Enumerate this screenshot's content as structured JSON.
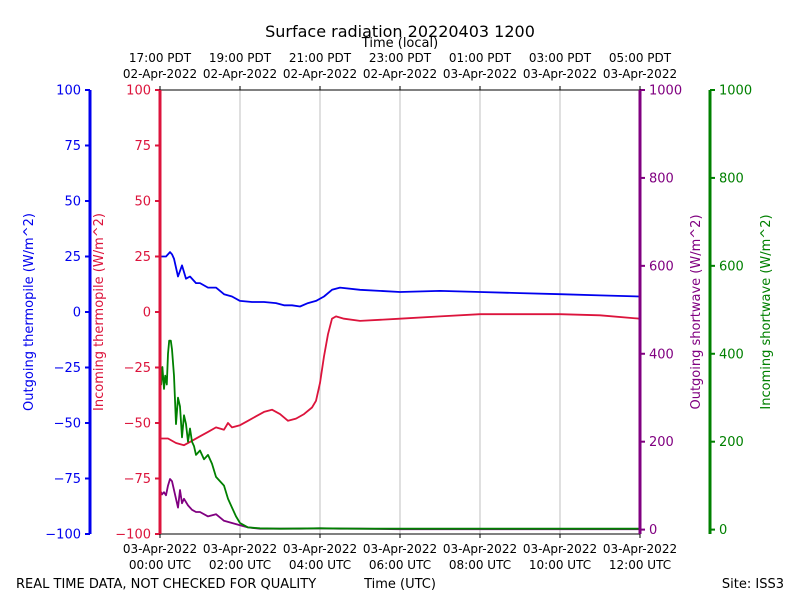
{
  "chart_data": {
    "type": "line",
    "title": "Surface radiation 20220403 1200",
    "top_axis_label": "Time (local)",
    "xlabel": "Time (UTC)",
    "footer_left": "REAL TIME DATA, NOT CHECKED FOR QUALITY",
    "footer_right": "Site: ISS3",
    "xlim": [
      0,
      12
    ],
    "bottom_ticks": [
      {
        "x": 0,
        "l1": "03-Apr-2022",
        "l2": "00:00 UTC"
      },
      {
        "x": 2,
        "l1": "03-Apr-2022",
        "l2": "02:00 UTC"
      },
      {
        "x": 4,
        "l1": "03-Apr-2022",
        "l2": "04:00 UTC"
      },
      {
        "x": 6,
        "l1": "03-Apr-2022",
        "l2": "06:00 UTC"
      },
      {
        "x": 8,
        "l1": "03-Apr-2022",
        "l2": "08:00 UTC"
      },
      {
        "x": 10,
        "l1": "03-Apr-2022",
        "l2": "10:00 UTC"
      },
      {
        "x": 12,
        "l1": "03-Apr-2022",
        "l2": "12:00 UTC"
      }
    ],
    "top_ticks": [
      {
        "x": 0,
        "l1": "17:00 PDT",
        "l2": "02-Apr-2022"
      },
      {
        "x": 2,
        "l1": "19:00 PDT",
        "l2": "02-Apr-2022"
      },
      {
        "x": 4,
        "l1": "21:00 PDT",
        "l2": "02-Apr-2022"
      },
      {
        "x": 6,
        "l1": "23:00 PDT",
        "l2": "02-Apr-2022"
      },
      {
        "x": 8,
        "l1": "01:00 PDT",
        "l2": "03-Apr-2022"
      },
      {
        "x": 10,
        "l1": "03:00 PDT",
        "l2": "03-Apr-2022"
      },
      {
        "x": 12,
        "l1": "05:00 PDT",
        "l2": "03-Apr-2022"
      }
    ],
    "axes": [
      {
        "id": "outgoing_thermopile",
        "label": "Outgoing thermopile (W/m^2)",
        "color": "#0000ee",
        "ylim": [
          -100,
          100
        ],
        "ticks": [
          -100,
          -75,
          -50,
          -25,
          0,
          25,
          50,
          75,
          100
        ],
        "side": "left-outer"
      },
      {
        "id": "incoming_thermopile",
        "label": "Incoming thermopile (W/m^2)",
        "color": "#dc143c",
        "ylim": [
          -100,
          100
        ],
        "ticks": [
          -100,
          -75,
          -50,
          -25,
          0,
          25,
          50,
          75,
          100
        ],
        "side": "left-inner"
      },
      {
        "id": "outgoing_shortwave",
        "label": "Outgoing shortwave (W/m^2)",
        "color": "#800080",
        "ylim": [
          -10,
          1000
        ],
        "ticks": [
          0,
          200,
          400,
          600,
          800,
          1000
        ],
        "side": "right-inner"
      },
      {
        "id": "incoming_shortwave",
        "label": "Incoming shortwave (W/m^2)",
        "color": "#008000",
        "ylim": [
          -10,
          1000
        ],
        "ticks": [
          0,
          200,
          400,
          600,
          800,
          1000
        ],
        "side": "right-outer"
      }
    ],
    "series": [
      {
        "name": "Outgoing thermopile",
        "axis": "outgoing_thermopile",
        "color": "#0000ee",
        "x": [
          0,
          0.15,
          0.25,
          0.3,
          0.35,
          0.45,
          0.55,
          0.65,
          0.75,
          0.9,
          1.0,
          1.2,
          1.4,
          1.6,
          1.8,
          2.0,
          2.3,
          2.6,
          2.9,
          3.1,
          3.3,
          3.5,
          3.7,
          3.9,
          4.1,
          4.3,
          4.5,
          5.0,
          6.0,
          7.0,
          8.0,
          9.0,
          10.0,
          11.0,
          12.0
        ],
        "values": [
          25,
          25,
          27,
          26,
          24,
          16,
          21,
          15,
          16,
          13,
          13,
          11,
          11,
          8,
          7,
          5,
          4.5,
          4.5,
          4,
          3,
          3,
          2.5,
          4,
          5,
          7,
          10,
          11,
          10,
          9,
          9.5,
          9,
          8.5,
          8,
          7.5,
          7
        ]
      },
      {
        "name": "Incoming thermopile",
        "axis": "incoming_thermopile",
        "color": "#dc143c",
        "x": [
          0,
          0.2,
          0.4,
          0.6,
          0.8,
          1.0,
          1.2,
          1.4,
          1.6,
          1.7,
          1.8,
          2.0,
          2.2,
          2.4,
          2.6,
          2.8,
          3.0,
          3.2,
          3.4,
          3.6,
          3.8,
          3.9,
          4.0,
          4.1,
          4.2,
          4.3,
          4.4,
          4.6,
          5.0,
          6.0,
          7.0,
          8.0,
          9.0,
          10.0,
          11.0,
          12.0
        ],
        "values": [
          -57,
          -57,
          -59,
          -60,
          -58,
          -56,
          -54,
          -52,
          -53,
          -50,
          -52,
          -51,
          -49,
          -47,
          -45,
          -44,
          -46,
          -49,
          -48,
          -46,
          -43,
          -40,
          -32,
          -20,
          -10,
          -3,
          -2,
          -3,
          -4,
          -3,
          -2,
          -1,
          -1,
          -1,
          -1.5,
          -3
        ]
      },
      {
        "name": "Outgoing shortwave",
        "axis": "outgoing_shortwave",
        "color": "#800080",
        "x": [
          0,
          0.05,
          0.1,
          0.15,
          0.2,
          0.25,
          0.3,
          0.35,
          0.4,
          0.45,
          0.5,
          0.55,
          0.6,
          0.7,
          0.8,
          0.9,
          1.0,
          1.2,
          1.4,
          1.6,
          1.8,
          2.0,
          2.2,
          2.5,
          3.0,
          3.5,
          4.0,
          4.5,
          5.0,
          6.0,
          7.0,
          8.0,
          9.0,
          10.0,
          11.0,
          12.0
        ],
        "values": [
          90,
          80,
          85,
          78,
          100,
          115,
          110,
          90,
          70,
          50,
          90,
          60,
          70,
          55,
          45,
          40,
          40,
          30,
          35,
          20,
          15,
          10,
          5,
          2,
          2,
          2,
          3,
          2,
          2,
          1,
          1,
          1,
          1,
          1,
          1,
          1
        ]
      },
      {
        "name": "Incoming shortwave",
        "axis": "incoming_shortwave",
        "color": "#008000",
        "x": [
          0,
          0.03,
          0.06,
          0.1,
          0.13,
          0.17,
          0.2,
          0.23,
          0.27,
          0.3,
          0.35,
          0.4,
          0.45,
          0.5,
          0.55,
          0.6,
          0.65,
          0.7,
          0.75,
          0.8,
          0.85,
          0.9,
          1.0,
          1.1,
          1.2,
          1.3,
          1.4,
          1.5,
          1.6,
          1.7,
          1.8,
          1.9,
          2.0,
          2.2,
          2.5,
          3.0,
          4.0,
          5.0,
          6.0,
          8.0,
          10.0,
          12.0
        ],
        "values": [
          360,
          330,
          370,
          320,
          350,
          330,
          400,
          430,
          430,
          410,
          350,
          240,
          300,
          280,
          210,
          260,
          240,
          200,
          230,
          200,
          190,
          170,
          180,
          160,
          170,
          150,
          120,
          110,
          100,
          70,
          50,
          30,
          15,
          5,
          3,
          2,
          3,
          2,
          2,
          2,
          2,
          2
        ]
      }
    ]
  }
}
